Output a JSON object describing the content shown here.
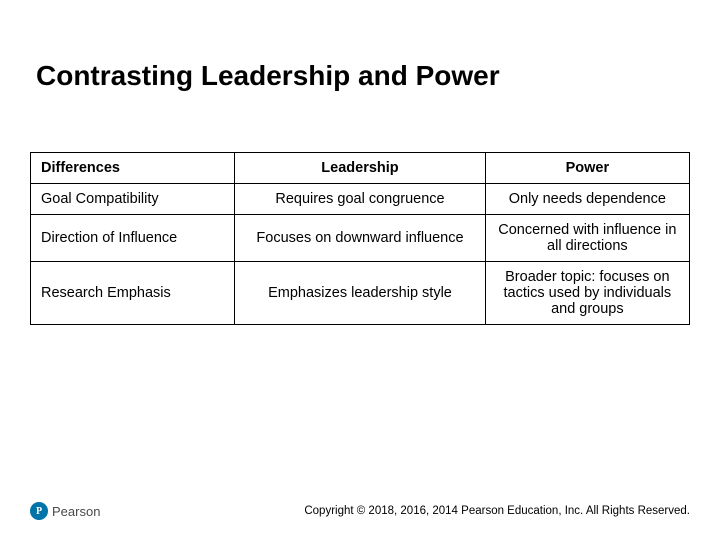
{
  "title": "Contrasting Leadership and Power",
  "table": {
    "headers": {
      "c1": "Differences",
      "c2": "Leadership",
      "c3": "Power"
    },
    "rows": [
      {
        "c1": "Goal Compatibility",
        "c2": "Requires goal congruence",
        "c3": "Only needs dependence"
      },
      {
        "c1": "Direction of Influence",
        "c2": "Focuses on downward influence",
        "c3": "Concerned with influence in all directions"
      },
      {
        "c1": "Research Emphasis",
        "c2": "Emphasizes leadership style",
        "c3": "Broader topic: focuses on tactics used by individuals and groups"
      }
    ],
    "border_color": "#000000",
    "font_size": 14.5
  },
  "logo": {
    "mark": "P",
    "text": "Pearson",
    "mark_bg": "#0073a8"
  },
  "copyright": "Copyright © 2018, 2016, 2014 Pearson Education, Inc. All Rights Reserved.",
  "colors": {
    "background": "#ffffff",
    "text": "#000000"
  }
}
